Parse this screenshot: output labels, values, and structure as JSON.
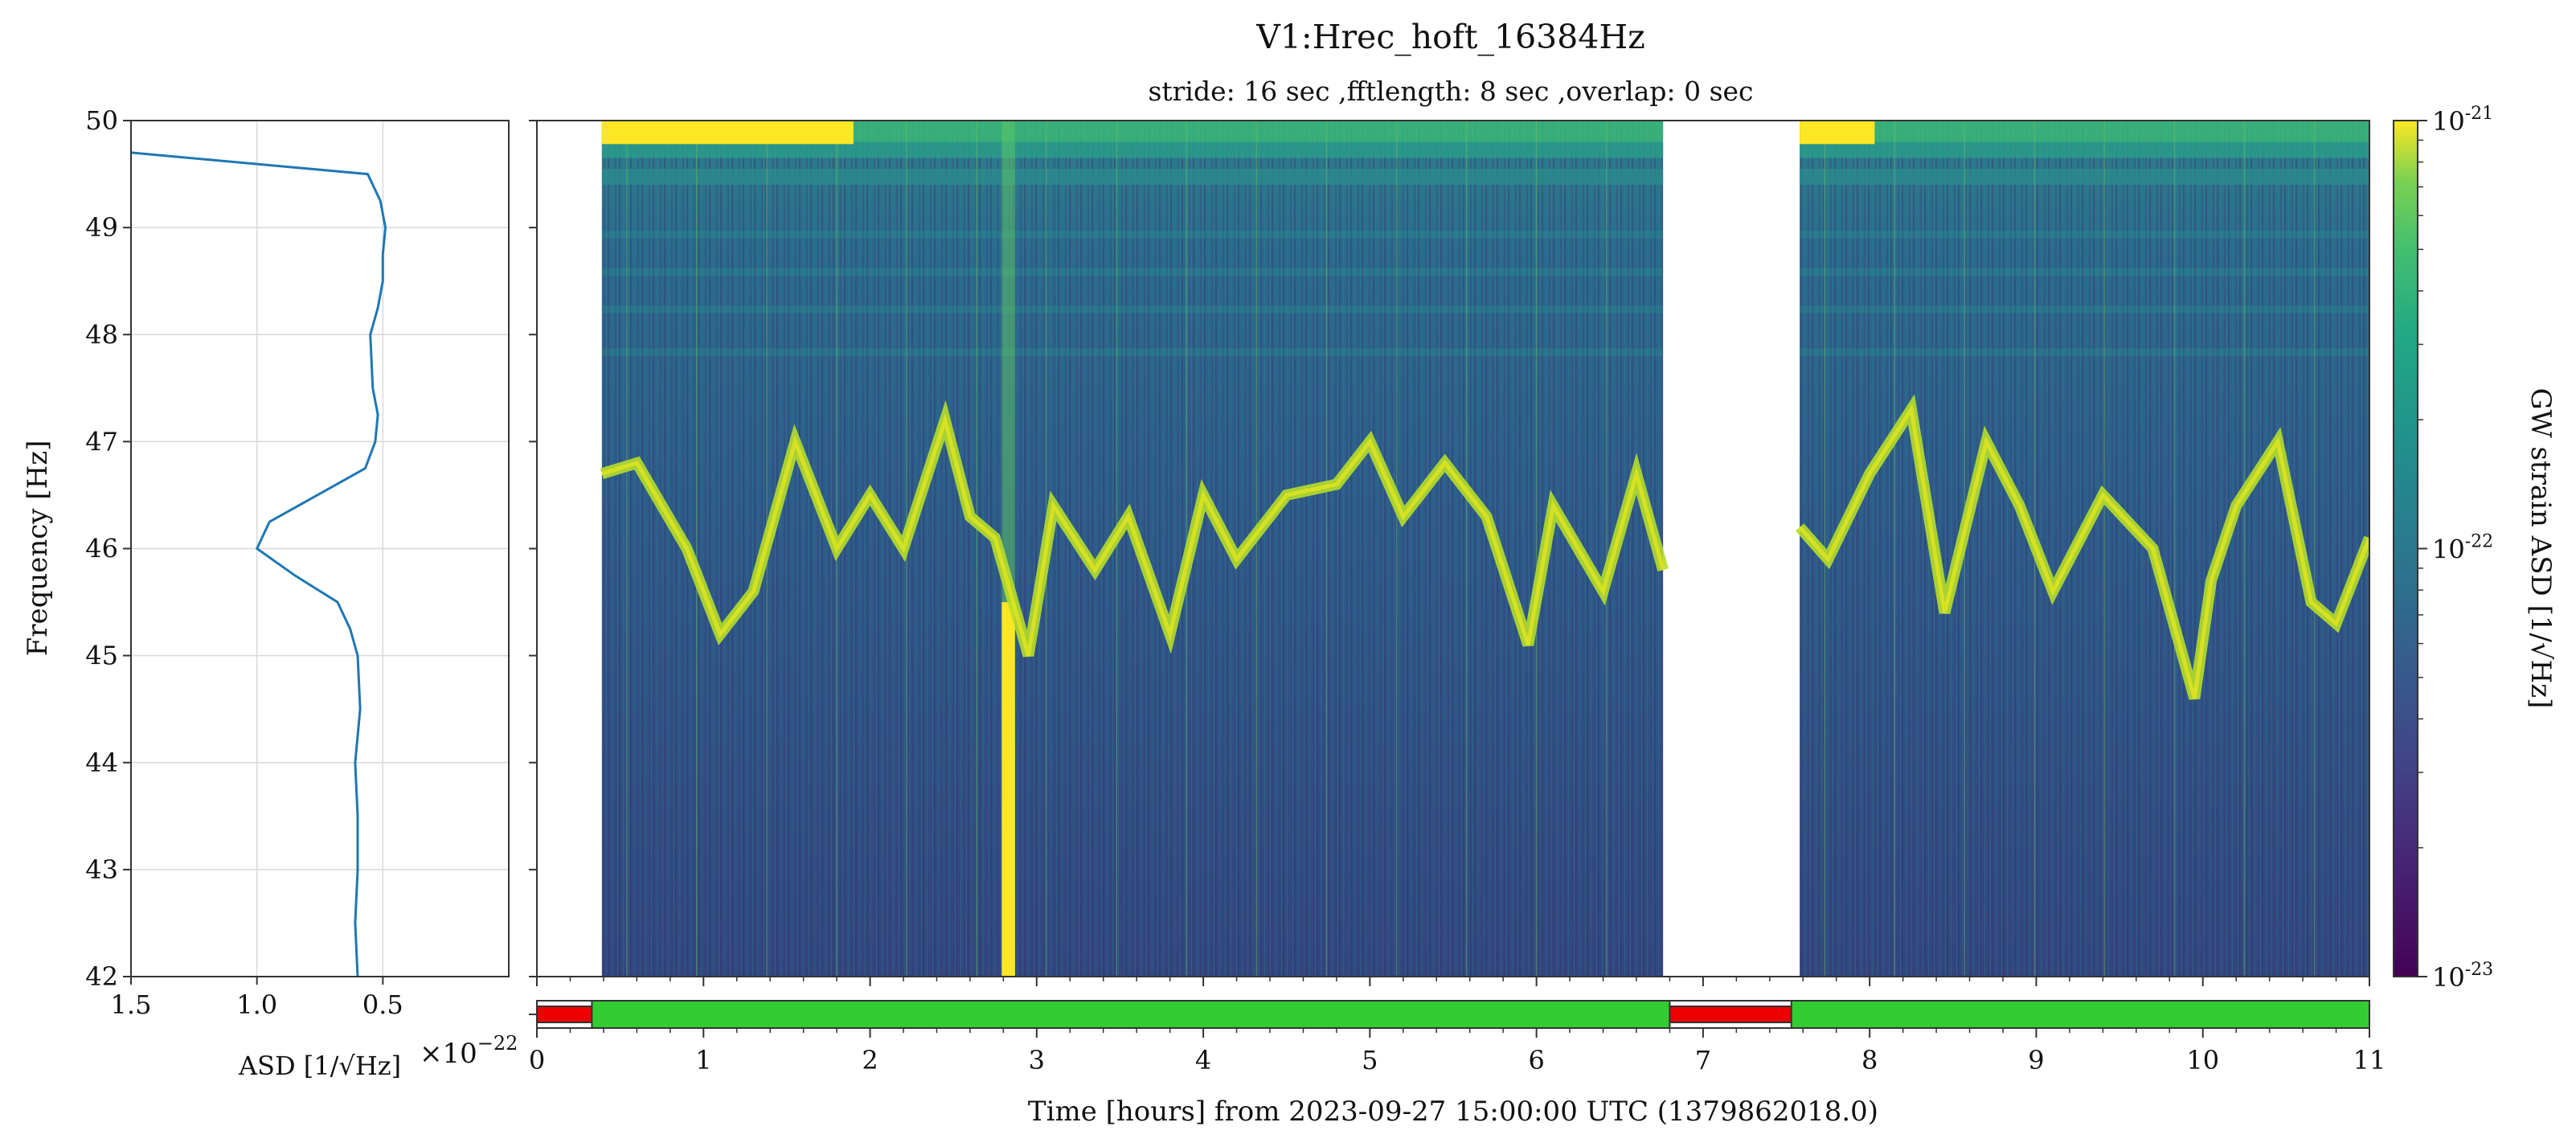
{
  "title": "V1:Hrec_hoft_16384Hz",
  "subtitle": "stride: 16 sec ,fftlength: 8 sec ,overlap: 0 sec",
  "colorbar": {
    "label": "GW strain ASD [1/√Hz]",
    "ticks": [
      {
        "base": "10",
        "exp": "-21",
        "value": 1e-21
      },
      {
        "base": "10",
        "exp": "-22",
        "value": 1e-22
      },
      {
        "base": "10",
        "exp": "-23",
        "value": 1e-23
      }
    ],
    "colormap": "viridis",
    "scale": "log"
  },
  "colors": {
    "asd_line": "#1f77b4",
    "segment_on": "#33cc33",
    "segment_off": "#ee0000",
    "low": "#440154",
    "high": "#fde725"
  },
  "chart_data": [
    {
      "type": "line",
      "name": "asd-panel",
      "xlabel": "ASD [1/√Hz]",
      "x_multiplier": "×10",
      "x_multiplier_exp": "−22",
      "ylabel": "Frequency [Hz]",
      "xlim": [
        1.5,
        0.0
      ],
      "ylim": [
        42,
        50
      ],
      "x_ticks": [
        "1.5",
        "1.0",
        "0.5"
      ],
      "x_tick_values": [
        1.5,
        1.0,
        0.5
      ],
      "y_ticks": [
        "42",
        "43",
        "44",
        "45",
        "46",
        "47",
        "48",
        "49",
        "50"
      ],
      "y_tick_values": [
        42,
        43,
        44,
        45,
        46,
        47,
        48,
        49,
        50
      ],
      "grid": true,
      "freq": [
        42.0,
        42.5,
        43.0,
        43.5,
        44.0,
        44.5,
        45.0,
        45.25,
        45.5,
        45.75,
        46.0,
        46.25,
        46.5,
        46.75,
        47.0,
        47.25,
        47.5,
        48.0,
        48.25,
        48.5,
        48.75,
        49.0,
        49.25,
        49.5,
        49.7
      ],
      "asd": [
        0.6,
        0.61,
        0.6,
        0.6,
        0.61,
        0.59,
        0.6,
        0.63,
        0.68,
        0.85,
        1.0,
        0.95,
        0.76,
        0.57,
        0.53,
        0.52,
        0.54,
        0.55,
        0.52,
        0.5,
        0.5,
        0.49,
        0.51,
        0.56,
        1.5
      ]
    },
    {
      "type": "heatmap",
      "name": "spectrogram",
      "xlabel": "Time [hours] from 2023-09-27 15:00:00 UTC (1379862018.0)",
      "xlim": [
        0,
        11
      ],
      "ylim": [
        42,
        50
      ],
      "x_ticks": [
        "0",
        "1",
        "2",
        "3",
        "4",
        "5",
        "6",
        "7",
        "8",
        "9",
        "10",
        "11"
      ],
      "x_tick_values": [
        0,
        1,
        2,
        3,
        4,
        5,
        6,
        7,
        8,
        9,
        10,
        11
      ],
      "color_scale": "log",
      "clim": [
        1e-23,
        1e-21
      ],
      "data_gaps_hours": [
        [
          0,
          0.39
        ],
        [
          6.76,
          7.58
        ]
      ],
      "high_band_yellow_hours": [
        [
          0.39,
          1.9
        ],
        [
          7.58,
          8.03
        ]
      ],
      "broadband_glitch_hours": [
        [
          2.79,
          2.87
        ]
      ],
      "line_feature": {
        "description_freq_hz_by_time": true,
        "t": [
          0.39,
          0.6,
          0.9,
          1.1,
          1.3,
          1.55,
          1.8,
          2.0,
          2.2,
          2.45,
          2.6,
          2.75,
          2.95,
          3.1,
          3.35,
          3.55,
          3.8,
          4.0,
          4.2,
          4.5,
          4.8,
          5.0,
          5.2,
          5.45,
          5.7,
          5.95,
          6.1,
          6.4,
          6.6,
          6.76,
          7.58,
          7.75,
          8.0,
          8.25,
          8.45,
          8.7,
          8.9,
          9.1,
          9.4,
          9.7,
          9.95,
          10.05,
          10.2,
          10.45,
          10.65,
          10.8,
          11.0
        ],
        "f": [
          46.7,
          46.8,
          46.0,
          45.2,
          45.6,
          47.0,
          46.0,
          46.5,
          46.0,
          47.2,
          46.3,
          46.1,
          45.0,
          46.4,
          45.8,
          46.3,
          45.2,
          46.5,
          45.9,
          46.5,
          46.6,
          47.0,
          46.3,
          46.8,
          46.3,
          45.1,
          46.4,
          45.6,
          46.7,
          45.8,
          46.2,
          45.9,
          46.7,
          47.3,
          45.4,
          47.0,
          46.4,
          45.6,
          46.5,
          46.0,
          44.6,
          45.7,
          46.4,
          47.0,
          45.5,
          45.3,
          46.1
        ]
      }
    },
    {
      "type": "bar",
      "name": "state-segments",
      "xlim": [
        0,
        11
      ],
      "segments": [
        {
          "start": 0.0,
          "end": 0.33,
          "state": "off"
        },
        {
          "start": 0.33,
          "end": 6.8,
          "state": "on"
        },
        {
          "start": 6.8,
          "end": 7.53,
          "state": "off"
        },
        {
          "start": 7.53,
          "end": 11.0,
          "state": "on"
        }
      ]
    }
  ]
}
